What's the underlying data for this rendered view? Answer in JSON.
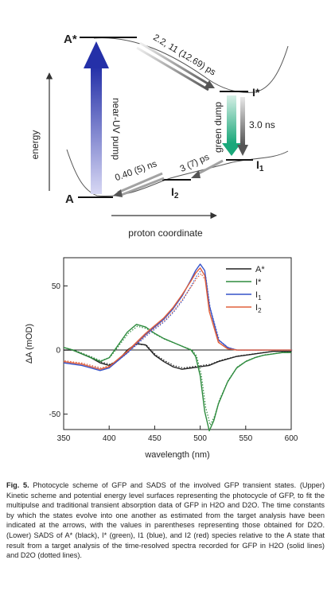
{
  "scheme": {
    "states": {
      "A_star": "A*",
      "A": "A",
      "I_star": "I*",
      "I1": "I",
      "I1_sub": "1",
      "I2": "I",
      "I2_sub": "2"
    },
    "arrows": {
      "pump": "near-UV pump",
      "decay": "2.2, 11 (12.69) ps",
      "dump": "green dump",
      "relax": "3.0 ns",
      "i2_to_a": "0.40 (5) ns",
      "i1_to_i2": "3 (7) ps"
    },
    "axes": {
      "y": "energy",
      "x": "proton coordinate"
    }
  },
  "chart_data": {
    "type": "line",
    "xlabel": "wavelength (nm)",
    "ylabel": "ΔA (mOD)",
    "xlim": [
      350,
      600
    ],
    "ylim": [
      -62,
      72
    ],
    "xticks": [
      350,
      400,
      450,
      500,
      550,
      600
    ],
    "yticks": [
      -50,
      0,
      50
    ],
    "grid": false,
    "legend_position": "top-right",
    "zero_line": true,
    "series": [
      {
        "name": "A*",
        "color": "#222222",
        "x": [
          350,
          360,
          370,
          380,
          390,
          400,
          410,
          420,
          430,
          440,
          450,
          460,
          470,
          480,
          490,
          500,
          510,
          520,
          530,
          540,
          550,
          560,
          570,
          580,
          590,
          600
        ],
        "y": [
          0,
          0,
          -3,
          -6,
          -10,
          -12,
          -8,
          0,
          5,
          4,
          -4,
          -9,
          -13,
          -15,
          -14,
          -13,
          -12,
          -9,
          -7,
          -5,
          -4,
          -3,
          -2,
          -1,
          -1,
          -1
        ]
      },
      {
        "name": "I*",
        "color": "#2e8b3e",
        "x": [
          350,
          360,
          370,
          380,
          390,
          400,
          410,
          420,
          430,
          440,
          450,
          460,
          470,
          480,
          490,
          495,
          500,
          505,
          510,
          515,
          520,
          530,
          540,
          550,
          560,
          570,
          580,
          590,
          600
        ],
        "y": [
          2,
          0,
          -3,
          -6,
          -9,
          -6,
          4,
          14,
          20,
          18,
          13,
          9,
          6,
          3,
          0,
          -5,
          -20,
          -48,
          -63,
          -55,
          -42,
          -25,
          -14,
          -9,
          -6,
          -4,
          -3,
          -2,
          -2
        ]
      },
      {
        "name": "I",
        "name_sub": "1",
        "color": "#3552c9",
        "x": [
          350,
          360,
          370,
          380,
          390,
          400,
          410,
          420,
          430,
          440,
          450,
          460,
          470,
          480,
          490,
          495,
          500,
          505,
          510,
          520,
          530,
          540,
          550,
          560,
          570,
          580,
          590,
          600
        ],
        "y": [
          -10,
          -11,
          -12,
          -14,
          -16,
          -14,
          -8,
          -2,
          5,
          12,
          18,
          24,
          32,
          42,
          55,
          62,
          67,
          62,
          35,
          8,
          2,
          0,
          0,
          0,
          0,
          0,
          0,
          0
        ]
      },
      {
        "name": "I",
        "name_sub": "2",
        "color": "#e0603c",
        "x": [
          350,
          360,
          370,
          380,
          390,
          400,
          410,
          420,
          430,
          440,
          450,
          460,
          470,
          480,
          490,
          495,
          500,
          505,
          510,
          520,
          530,
          540,
          550,
          560,
          570,
          580,
          590,
          600
        ],
        "y": [
          -9,
          -10,
          -11,
          -13,
          -15,
          -13,
          -7,
          -1,
          6,
          13,
          19,
          25,
          33,
          43,
          54,
          60,
          64,
          58,
          30,
          6,
          1,
          0,
          0,
          0,
          0,
          0,
          0,
          0
        ]
      }
    ]
  },
  "caption": {
    "label": "Fig. 5.",
    "text": "Photocycle scheme of GFP and SADS of the involved GFP transient states. (Upper) Kinetic scheme and potential energy level surfaces representing the photocycle of GFP, to fit the multipulse and traditional transient absorption data of GFP in H2O and D2O. The time constants by which the states evolve into one another as estimated from the target analysis have been indicated at the arrows, with the values in parentheses representing those obtained for D2O. (Lower) SADS of A* (black), I* (green), I1 (blue), and I2 (red) species relative to the A state that result from a target analysis of the time-resolved spectra recorded for GFP in H2O (solid lines) and D2O (dotted lines)."
  }
}
